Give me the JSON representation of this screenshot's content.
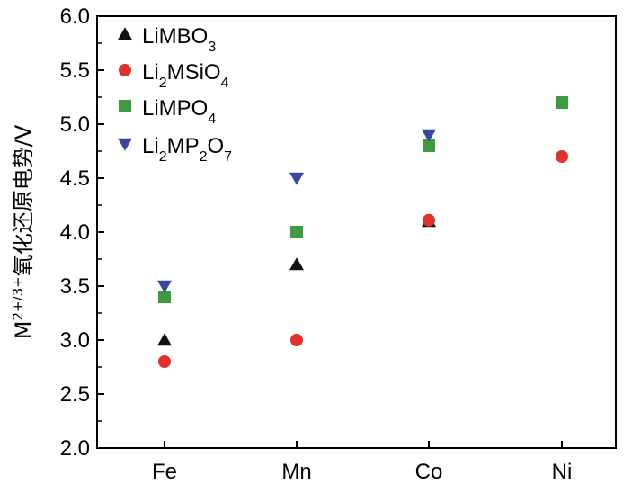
{
  "chart_data": {
    "type": "scatter",
    "title": "",
    "xlabel": "",
    "ylabel": "M2+/3+氧化还原电势/V",
    "ylabel_parts": {
      "base": "M",
      "sup": "2+/3+",
      "rest": "氧化还原电势/V"
    },
    "categories": [
      "Fe",
      "Mn",
      "Co",
      "Ni"
    ],
    "ylim": [
      2.0,
      6.0
    ],
    "yticks": [
      2.0,
      2.5,
      3.0,
      3.5,
      4.0,
      4.5,
      5.0,
      5.5,
      6.0
    ],
    "ytick_labels": [
      "2.0",
      "2.5",
      "3.0",
      "3.5",
      "4.0",
      "4.5",
      "5.0",
      "5.5",
      "6.0"
    ],
    "legend_position": "top-left",
    "series": [
      {
        "name": "LiMBO3",
        "label_parts": [
          {
            "t": "LiMBO"
          },
          {
            "t": "3",
            "sub": true
          }
        ],
        "marker": "triangle-up",
        "color": "#111111",
        "values": [
          3.0,
          3.7,
          4.1,
          null
        ]
      },
      {
        "name": "Li2MSiO4",
        "label_parts": [
          {
            "t": "Li"
          },
          {
            "t": "2",
            "sub": true
          },
          {
            "t": "MSiO"
          },
          {
            "t": "4",
            "sub": true
          }
        ],
        "marker": "circle",
        "color": "#e0312a",
        "values": [
          2.8,
          3.0,
          4.11,
          4.7
        ]
      },
      {
        "name": "LiMPO4",
        "label_parts": [
          {
            "t": "LiMPO"
          },
          {
            "t": "4",
            "sub": true
          }
        ],
        "marker": "square",
        "color": "#3f9a3f",
        "values": [
          3.4,
          4.0,
          4.8,
          5.2
        ]
      },
      {
        "name": "Li2MP2O7",
        "label_parts": [
          {
            "t": "Li"
          },
          {
            "t": "2",
            "sub": true
          },
          {
            "t": "MP"
          },
          {
            "t": "2",
            "sub": true
          },
          {
            "t": "O"
          },
          {
            "t": "7",
            "sub": true
          }
        ],
        "marker": "triangle-down",
        "color": "#3748a0",
        "values": [
          3.5,
          4.5,
          4.9,
          null
        ]
      }
    ]
  }
}
